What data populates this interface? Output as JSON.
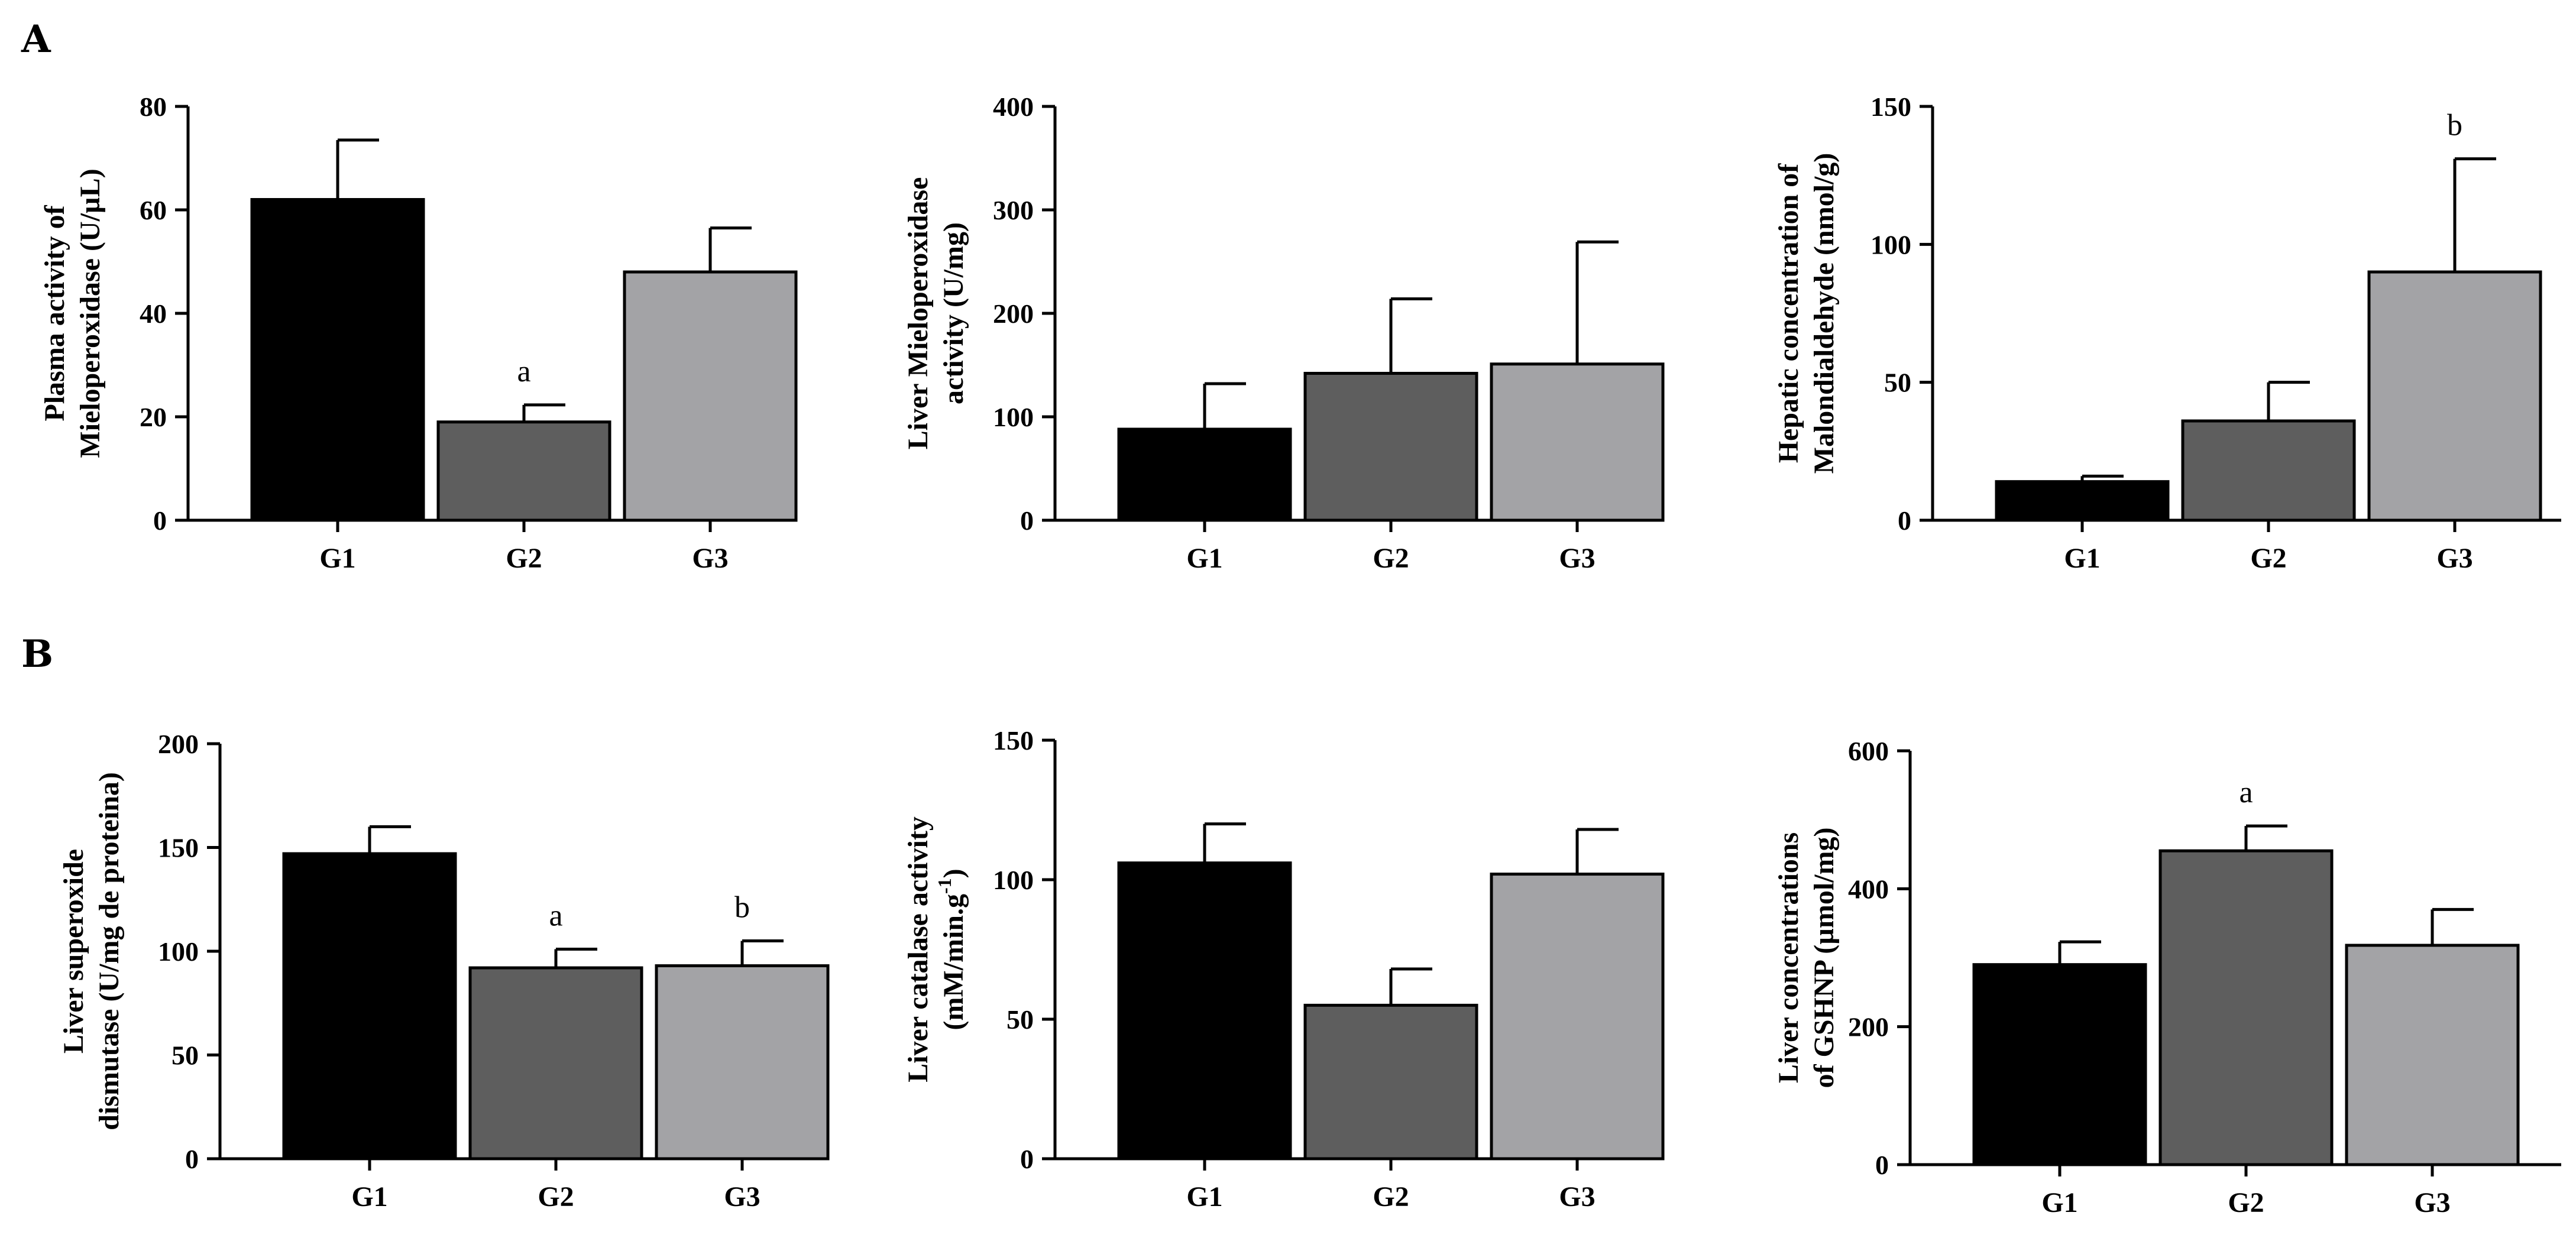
{
  "figure": {
    "panel_labels": [
      "A",
      "B"
    ]
  },
  "colors": {
    "G1": "#000000",
    "G2": "#5e5e5e",
    "G3": "#a3a3a6",
    "axis": "#000000"
  },
  "chart_data": [
    {
      "type": "bar",
      "panel": "A",
      "categories": [
        "G1",
        "G2",
        "G3"
      ],
      "values": [
        62,
        19,
        48
      ],
      "errors": [
        11.5,
        3.3,
        8.5
      ],
      "significance": [
        "",
        "a",
        ""
      ],
      "ylabel": [
        "Plasma activity of",
        "Mieloperoxidase (U/µL)"
      ],
      "ylim": [
        0,
        80
      ],
      "yticks": [
        0,
        20,
        40,
        60,
        80
      ]
    },
    {
      "type": "bar",
      "panel": "A",
      "categories": [
        "G1",
        "G2",
        "G3"
      ],
      "values": [
        88,
        142,
        151
      ],
      "errors": [
        44,
        72,
        118
      ],
      "significance": [
        "",
        "",
        ""
      ],
      "ylabel": [
        "Liver Mieloperoxidase",
        "activity (U/mg)"
      ],
      "ylim": [
        0,
        400
      ],
      "yticks": [
        0,
        100,
        200,
        300,
        400
      ]
    },
    {
      "type": "bar",
      "panel": "A",
      "categories": [
        "G1",
        "G2",
        "G3"
      ],
      "values": [
        14,
        36,
        90
      ],
      "errors": [
        2,
        14,
        41
      ],
      "significance": [
        "",
        "",
        "b"
      ],
      "ylabel": [
        "Hepatic concentration of",
        "Malondialdehyde (nmol/g)"
      ],
      "ylim": [
        0,
        150
      ],
      "yticks": [
        0,
        50,
        100,
        150
      ]
    },
    {
      "type": "bar",
      "panel": "B",
      "categories": [
        "G1",
        "G2",
        "G3"
      ],
      "values": [
        147,
        92,
        93
      ],
      "errors": [
        13,
        9,
        12
      ],
      "significance": [
        "",
        "a",
        "b"
      ],
      "ylabel": [
        "Liver superoxide",
        "dismutase (U/mg de proteina)"
      ],
      "ylim": [
        0,
        200
      ],
      "yticks": [
        0,
        50,
        100,
        150,
        200
      ]
    },
    {
      "type": "bar",
      "panel": "B",
      "categories": [
        "G1",
        "G2",
        "G3"
      ],
      "values": [
        106,
        55,
        102
      ],
      "errors": [
        14,
        13,
        16
      ],
      "significance": [
        "",
        "",
        ""
      ],
      "ylabel": [
        "Liver catalase activity",
        "(mM/min.g",
        "-1",
        ")"
      ],
      "ylim": [
        0,
        150
      ],
      "yticks": [
        0,
        50,
        100,
        150
      ]
    },
    {
      "type": "bar",
      "panel": "B",
      "categories": [
        "G1",
        "G2",
        "G3"
      ],
      "values": [
        290,
        455,
        318
      ],
      "errors": [
        33,
        36,
        52
      ],
      "significance": [
        "",
        "a",
        ""
      ],
      "ylabel": [
        "Liver concentrations",
        "of GSHNP (µmol/mg)"
      ],
      "ylim": [
        0,
        600
      ],
      "yticks": [
        0,
        200,
        400,
        600
      ]
    }
  ]
}
